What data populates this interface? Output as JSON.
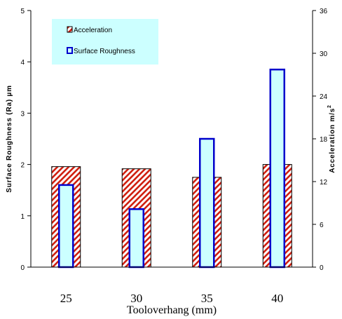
{
  "chart_data": {
    "type": "bar",
    "categories": [
      "25",
      "30",
      "35",
      "40"
    ],
    "series": [
      {
        "name": "Acceleration",
        "axis": "right",
        "values": [
          14.1,
          13.8,
          12.6,
          14.4
        ],
        "fill": "hatch",
        "color": "#d02010"
      },
      {
        "name": "Surface Roughness",
        "axis": "left",
        "values": [
          1.6,
          1.13,
          2.5,
          3.85
        ],
        "fill": "#ccffff",
        "color": "#0000cc"
      }
    ],
    "xlabel": "Tooloverhang (mm)",
    "ylabel_left": "Surface Roughness (Ra) µm",
    "ylabel_right_main": "Acceleration m/s",
    "ylabel_right_sup": "2",
    "ylim_left": [
      0,
      5
    ],
    "ylim_right": [
      0,
      36
    ],
    "yticks_left": [
      "0",
      "1",
      "2",
      "3",
      "4",
      "5"
    ],
    "yticks_right": [
      "0",
      "6",
      "12",
      "18",
      "24",
      "30",
      "36"
    ],
    "legend_placement": "top-left",
    "legend_background": "#ccffff",
    "grid": false
  }
}
